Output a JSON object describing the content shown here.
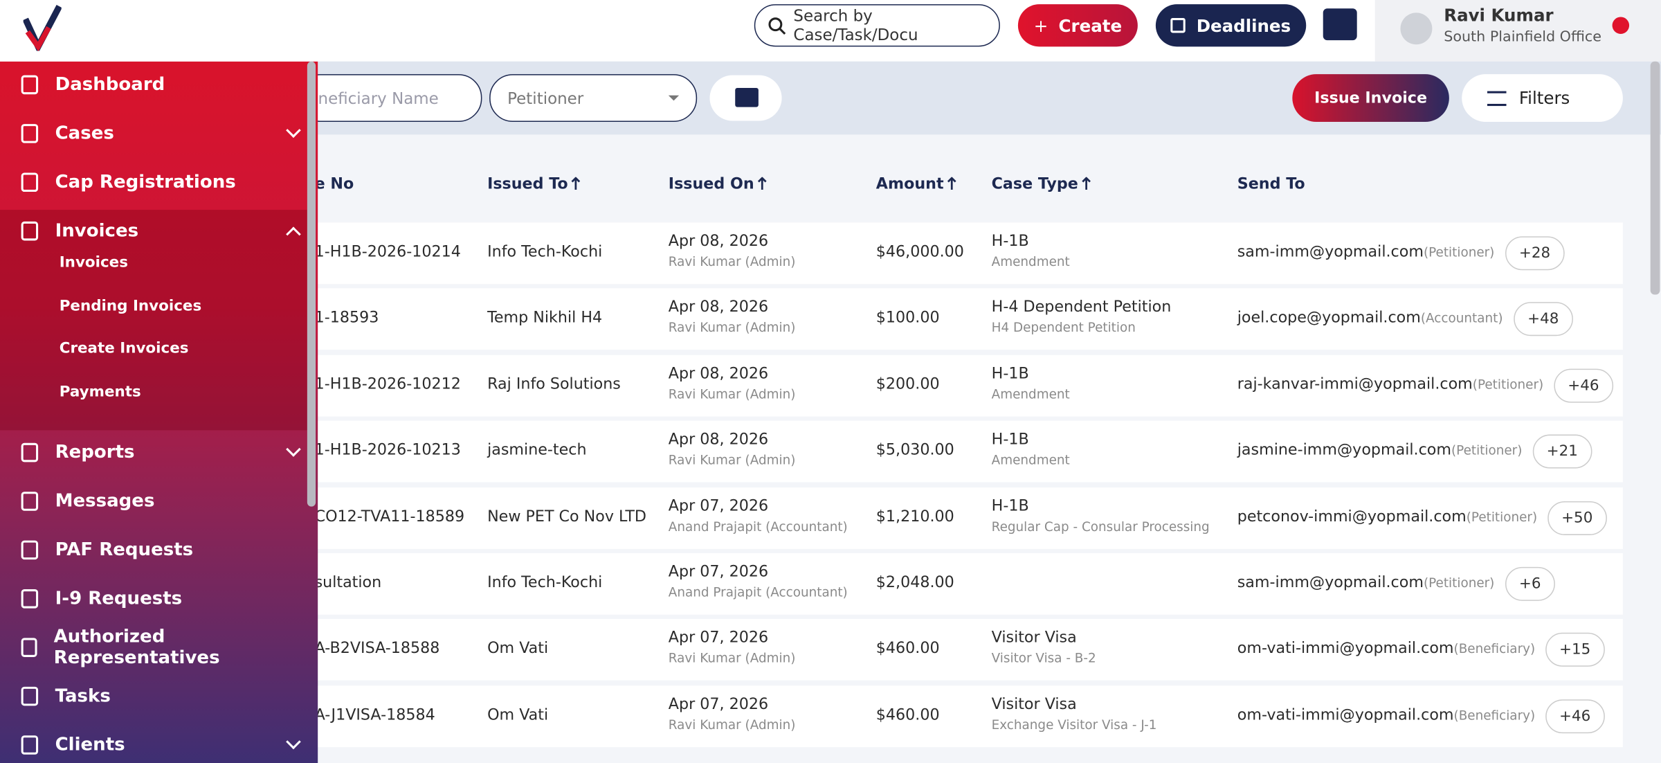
{
  "header": {
    "search_placeholder": "Search by Case/Task/Docu",
    "create": "Create",
    "deadlines": "Deadlines",
    "user_name": "Ravi Kumar",
    "office": "South Plainfield Office"
  },
  "sidebar": {
    "items": [
      {
        "label": "Dashboard"
      },
      {
        "label": "Cases"
      },
      {
        "label": "Cap Registrations"
      },
      {
        "label": "Invoices",
        "children": [
          "Invoices",
          "Pending Invoices",
          "Create Invoices",
          "Payments"
        ]
      },
      {
        "label": "Reports"
      },
      {
        "label": "Messages"
      },
      {
        "label": "PAF Requests"
      },
      {
        "label": "I-9 Requests"
      },
      {
        "label": "Authorized Representatives"
      },
      {
        "label": "Tasks"
      },
      {
        "label": "Clients"
      }
    ]
  },
  "filters": {
    "beneficiary": "eneficiary Name",
    "petitioner": "Petitioner",
    "issue_invoice": "Issue Invoice",
    "filters": "Filters"
  },
  "table": {
    "columns": [
      "e No",
      "Issued To",
      "Issued On",
      "Amount",
      "Case Type",
      "Send To"
    ],
    "rows": [
      {
        "number": "1-H1B-2026-10214",
        "issued_to": "Info Tech-Kochi",
        "date": "Apr 08, 2026",
        "by": "Ravi Kumar (Admin)",
        "amount": "$46,000.00",
        "case_type": "H-1B",
        "case_subtype": "Amendment",
        "email": "sam-imm@yopmail.com",
        "role": "(Petitioner)",
        "count": "+28"
      },
      {
        "number": "1-18593",
        "issued_to": "Temp Nikhil H4",
        "date": "Apr 08, 2026",
        "by": "Ravi Kumar (Admin)",
        "amount": "$100.00",
        "case_type": "H-4 Dependent Petition",
        "case_subtype": "H4 Dependent Petition",
        "email": "joel.cope@yopmail.com",
        "role": "(Accountant)",
        "count": "+48"
      },
      {
        "number": "1-H1B-2026-10212",
        "issued_to": "Raj Info Solutions",
        "date": "Apr 08, 2026",
        "by": "Ravi Kumar (Admin)",
        "amount": "$200.00",
        "case_type": "H-1B",
        "case_subtype": "Amendment",
        "email": "raj-kanvar-immi@yopmail.com",
        "role": "(Petitioner)",
        "count": "+46"
      },
      {
        "number": "1-H1B-2026-10213",
        "issued_to": "jasmine-tech",
        "date": "Apr 08, 2026",
        "by": "Ravi Kumar (Admin)",
        "amount": "$5,030.00",
        "case_type": "H-1B",
        "case_subtype": "Amendment",
        "email": "jasmine-imm@yopmail.com",
        "role": "(Petitioner)",
        "count": "+21"
      },
      {
        "number": "CO12-TVA11-18589",
        "issued_to": "New PET Co Nov LTD",
        "date": "Apr 07, 2026",
        "by": "Anand Prajapit (Accountant)",
        "amount": "$1,210.00",
        "case_type": "H-1B",
        "case_subtype": "Regular Cap - Consular Processing",
        "email": "petconov-immi@yopmail.com",
        "role": "(Petitioner)",
        "count": "+50"
      },
      {
        "number": "sultation",
        "issued_to": "Info Tech-Kochi",
        "date": "Apr 07, 2026",
        "by": "Anand Prajapit (Accountant)",
        "amount": "$2,048.00",
        "case_type": null,
        "case_subtype": null,
        "email": "sam-imm@yopmail.com",
        "role": "(Petitioner)",
        "count": "+6"
      },
      {
        "number": "A-B2VISA-18588",
        "issued_to": "Om Vati",
        "date": "Apr 07, 2026",
        "by": "Ravi Kumar (Admin)",
        "amount": "$460.00",
        "case_type": "Visitor Visa",
        "case_subtype": "Visitor Visa - B-2",
        "email": "om-vati-immi@yopmail.com",
        "role": "(Beneficiary)",
        "count": "+15"
      },
      {
        "number": "A-J1VISA-18584",
        "issued_to": "Om Vati",
        "date": "Apr 07, 2026",
        "by": "Ravi Kumar (Admin)",
        "amount": "$460.00",
        "case_type": "Visitor Visa",
        "case_subtype": "Exchange Visitor Visa - J-1",
        "email": "om-vati-immi@yopmail.com",
        "role": "(Beneficiary)",
        "count": "+46"
      }
    ]
  }
}
